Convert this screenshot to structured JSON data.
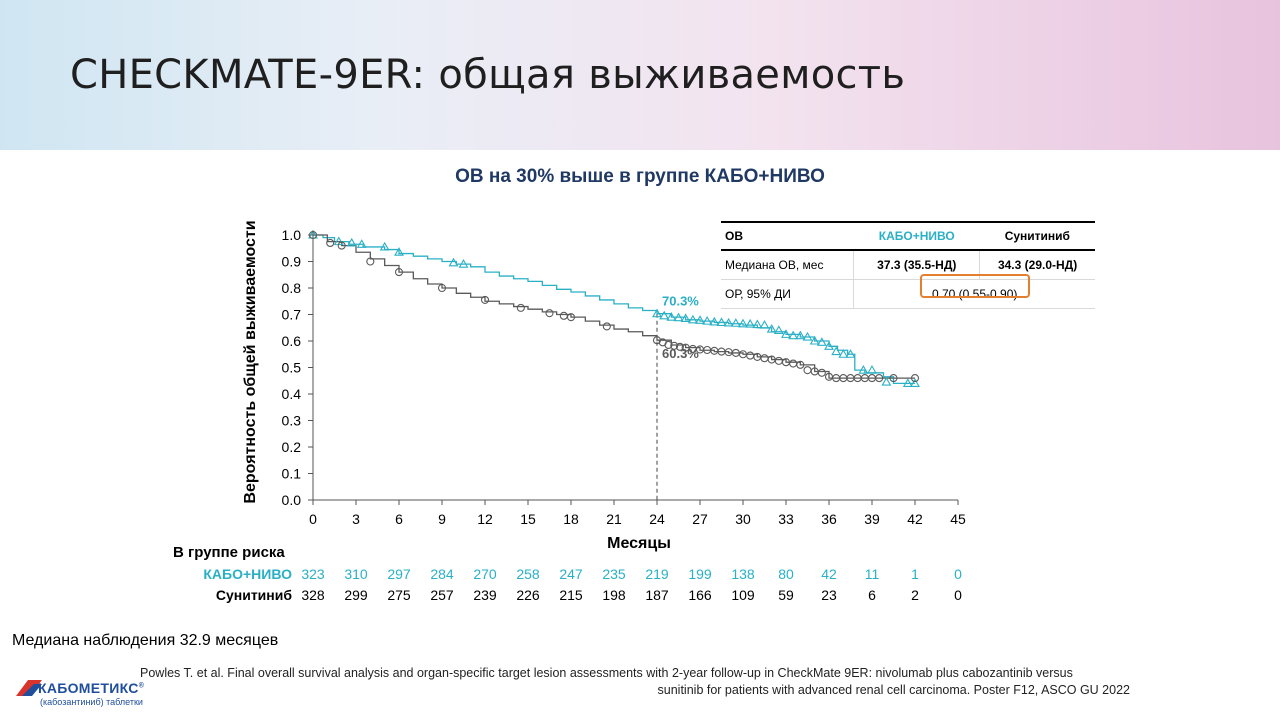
{
  "slide": {
    "title": "CHECKMATE-9ER: общая выживаемость",
    "subtitle": "ОВ на 30% выше в группе КАБО+НИВО",
    "median_followup": "Медиана наблюдения 32.9 месяцев",
    "reference_line1": "Powles T. et al. Final overall  survival  analysis and organ-specific target lesion assessments with 2-year follow-up in CheckMate 9ER: nivolumab  plus cabozantinib versus",
    "reference_line2": "sunitinib for patients with advanced  renal cell carcinoma. Poster F12, ASCO GU 2022",
    "logo_name": "КАБОМЕТИКС",
    "logo_mark": "®",
    "logo_sub": "(кабозантиниб) таблетки"
  },
  "table": {
    "header": [
      "ОВ",
      "КАБО+НИВО",
      "Сунитиниб"
    ],
    "row1": [
      "Медиана ОВ, мес",
      "37.3 (35.5-НД)",
      "34.3 (29.0-НД)"
    ],
    "row2": [
      "ОР, 95% ДИ",
      "0.70 (0.55-0.90)"
    ]
  },
  "risk_table": {
    "title": "В группе риска",
    "rows": [
      {
        "label": "КАБО+НИВО",
        "values": [
          "323",
          "310",
          "297",
          "284",
          "270",
          "258",
          "247",
          "235",
          "219",
          "199",
          "138",
          "80",
          "42",
          "11",
          "1",
          "0"
        ]
      },
      {
        "label": "Сунитиниб",
        "values": [
          "328",
          "299",
          "275",
          "257",
          "239",
          "226",
          "215",
          "198",
          "187",
          "166",
          "109",
          "59",
          "23",
          "6",
          "2",
          "0"
        ]
      }
    ]
  },
  "colors": {
    "cabo_nivo": "#2ab0c5",
    "sunitinib": "#5a5a5a",
    "highlight": "#e47f2f",
    "subtitle": "#1f3864"
  },
  "chart_data": {
    "type": "line",
    "title": "",
    "xlabel": "Месяцы",
    "ylabel": "Вероятность общей выживаемости",
    "xlim": [
      0,
      45
    ],
    "ylim": [
      0,
      1.0
    ],
    "xticks": [
      "0",
      "3",
      "6",
      "9",
      "12",
      "15",
      "18",
      "21",
      "24",
      "27",
      "30",
      "33",
      "36",
      "39",
      "42",
      "45"
    ],
    "yticks": [
      "0.0",
      "0.1",
      "0.2",
      "0.3",
      "0.4",
      "0.5",
      "0.6",
      "0.7",
      "0.8",
      "0.9",
      "1.0"
    ],
    "grid": false,
    "reference_x": 24,
    "annotations": [
      {
        "text": "70.3%",
        "x": 24,
        "y": 0.703,
        "series": "КАБО+НИВО"
      },
      {
        "text": "60.3%",
        "x": 24,
        "y": 0.603,
        "series": "Сунитиниб"
      }
    ],
    "series": [
      {
        "name": "КАБО+НИВО",
        "step": true,
        "x": [
          0,
          0.7,
          1.5,
          2.5,
          3.5,
          5,
          6,
          7,
          8,
          9,
          10,
          11,
          12,
          13,
          14,
          15,
          16,
          17,
          18,
          19,
          20,
          21,
          22,
          23,
          24,
          25,
          26,
          27,
          28,
          29,
          30,
          31,
          32,
          33,
          34,
          35,
          36,
          36.6,
          37.3,
          37.8,
          38.5,
          39.8,
          40.5,
          42
        ],
        "y": [
          1.0,
          0.99,
          0.975,
          0.965,
          0.955,
          0.945,
          0.93,
          0.92,
          0.91,
          0.9,
          0.89,
          0.88,
          0.86,
          0.845,
          0.835,
          0.825,
          0.81,
          0.795,
          0.785,
          0.77,
          0.755,
          0.74,
          0.725,
          0.715,
          0.703,
          0.69,
          0.68,
          0.675,
          0.67,
          0.665,
          0.66,
          0.65,
          0.635,
          0.625,
          0.615,
          0.6,
          0.58,
          0.565,
          0.55,
          0.49,
          0.48,
          0.465,
          0.44,
          0.44
        ],
        "markers": [
          [
            0,
            1.0
          ],
          [
            1.8,
            0.975
          ],
          [
            2.7,
            0.97
          ],
          [
            3.4,
            0.965
          ],
          [
            5,
            0.955
          ],
          [
            6,
            0.935
          ],
          [
            9.8,
            0.895
          ],
          [
            10.5,
            0.89
          ],
          [
            24,
            0.703
          ],
          [
            24.5,
            0.695
          ],
          [
            25,
            0.69
          ],
          [
            25.5,
            0.688
          ],
          [
            26,
            0.685
          ],
          [
            26.5,
            0.68
          ],
          [
            27,
            0.678
          ],
          [
            27.5,
            0.675
          ],
          [
            28,
            0.672
          ],
          [
            28.5,
            0.67
          ],
          [
            29,
            0.668
          ],
          [
            29.5,
            0.667
          ],
          [
            30,
            0.665
          ],
          [
            30.5,
            0.664
          ],
          [
            31,
            0.662
          ],
          [
            31.5,
            0.66
          ],
          [
            32,
            0.645
          ],
          [
            32.5,
            0.64
          ],
          [
            33,
            0.625
          ],
          [
            33.5,
            0.62
          ],
          [
            34,
            0.62
          ],
          [
            34.5,
            0.615
          ],
          [
            35,
            0.6
          ],
          [
            35.5,
            0.595
          ],
          [
            36,
            0.58
          ],
          [
            36.5,
            0.56
          ],
          [
            37,
            0.55
          ],
          [
            37.5,
            0.55
          ],
          [
            38.4,
            0.49
          ],
          [
            39,
            0.49
          ],
          [
            40,
            0.445
          ],
          [
            41.5,
            0.44
          ],
          [
            42,
            0.44
          ]
        ]
      },
      {
        "name": "Сунитиниб",
        "step": true,
        "x": [
          0,
          1,
          2,
          3,
          4,
          5,
          6,
          7,
          8,
          9,
          10,
          11,
          12,
          13,
          14,
          15,
          16,
          17,
          18,
          19,
          20,
          21,
          22,
          23,
          24,
          25,
          26,
          27,
          28,
          29,
          30,
          31,
          32,
          33,
          34,
          35,
          36,
          38,
          40,
          42
        ],
        "y": [
          1.0,
          0.975,
          0.96,
          0.935,
          0.91,
          0.885,
          0.86,
          0.835,
          0.815,
          0.8,
          0.78,
          0.765,
          0.75,
          0.74,
          0.73,
          0.72,
          0.71,
          0.7,
          0.69,
          0.675,
          0.66,
          0.645,
          0.635,
          0.62,
          0.603,
          0.585,
          0.575,
          0.565,
          0.56,
          0.555,
          0.55,
          0.54,
          0.53,
          0.52,
          0.51,
          0.485,
          0.46,
          0.46,
          0.46,
          0.46
        ],
        "markers": [
          [
            0,
            1.0
          ],
          [
            1.2,
            0.97
          ],
          [
            2,
            0.96
          ],
          [
            4,
            0.9
          ],
          [
            6,
            0.86
          ],
          [
            9,
            0.8
          ],
          [
            12,
            0.755
          ],
          [
            14.5,
            0.725
          ],
          [
            16.5,
            0.705
          ],
          [
            17.5,
            0.695
          ],
          [
            18,
            0.69
          ],
          [
            20.5,
            0.655
          ],
          [
            24,
            0.603
          ],
          [
            24.4,
            0.595
          ],
          [
            24.8,
            0.585
          ],
          [
            25.2,
            0.582
          ],
          [
            25.6,
            0.578
          ],
          [
            26,
            0.575
          ],
          [
            26.5,
            0.57
          ],
          [
            27,
            0.568
          ],
          [
            27.5,
            0.566
          ],
          [
            28,
            0.563
          ],
          [
            28.5,
            0.56
          ],
          [
            29,
            0.558
          ],
          [
            29.5,
            0.555
          ],
          [
            30,
            0.55
          ],
          [
            30.5,
            0.545
          ],
          [
            31,
            0.54
          ],
          [
            31.5,
            0.535
          ],
          [
            32,
            0.53
          ],
          [
            32.5,
            0.525
          ],
          [
            33,
            0.52
          ],
          [
            33.5,
            0.515
          ],
          [
            34,
            0.51
          ],
          [
            34.5,
            0.49
          ],
          [
            35,
            0.485
          ],
          [
            35.5,
            0.48
          ],
          [
            36,
            0.465
          ],
          [
            36.5,
            0.46
          ],
          [
            37,
            0.46
          ],
          [
            37.5,
            0.46
          ],
          [
            38,
            0.46
          ],
          [
            38.5,
            0.46
          ],
          [
            39,
            0.46
          ],
          [
            39.5,
            0.46
          ],
          [
            40.5,
            0.46
          ],
          [
            42,
            0.46
          ]
        ]
      }
    ]
  }
}
